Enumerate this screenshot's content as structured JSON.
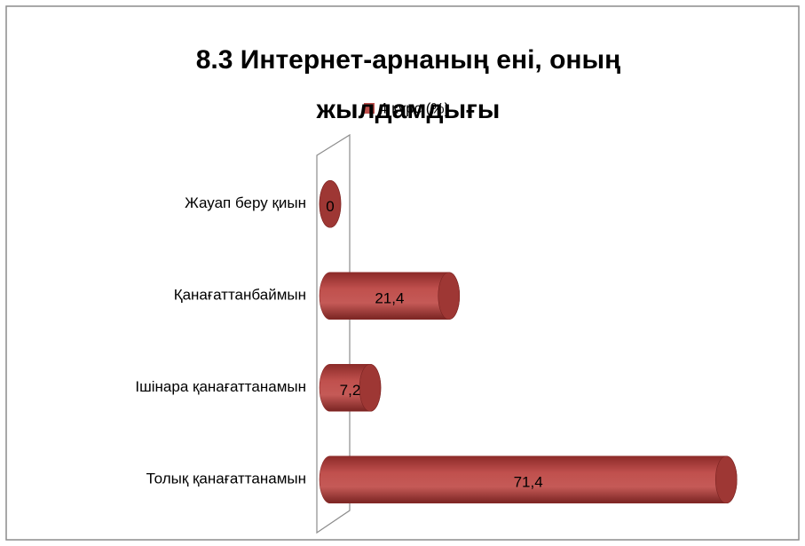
{
  "chart_data": {
    "type": "bar",
    "orientation": "horizontal",
    "title": "8.3 Интернет-арнаның ені, оның жылдамдығы",
    "categories": [
      "Жауап беру қиын",
      "Қанағаттанбаймын",
      "Ішінара қанағаттанамын",
      "Толық қанағаттанамын"
    ],
    "series": [
      {
        "name": "4 курс (%)",
        "color": "#c0504d",
        "values": [
          0,
          21.4,
          7.2,
          71.4
        ],
        "value_labels": [
          "0",
          "21,4",
          "7,2",
          "71,4"
        ]
      }
    ],
    "xlim": [
      0,
      80
    ],
    "legend": "top"
  }
}
